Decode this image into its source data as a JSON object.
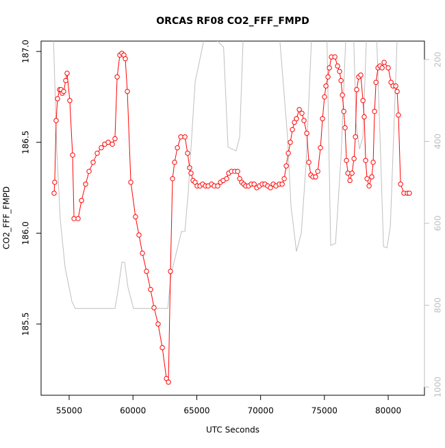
{
  "chart_data": {
    "type": "line",
    "title": "ORCAS RF08 CO2_FFF_FMPD",
    "xlabel": "UTC Seconds",
    "ylabel": "CO2_FFF_FMPD",
    "xlim": [
      52800,
      82840
    ],
    "xticks": [
      55000,
      60000,
      65000,
      70000,
      75000,
      80000
    ],
    "ylim": [
      185.108,
      187.057
    ],
    "yticks": [
      185.5,
      {
        "value": 186.0,
        "label": "186.0"
      },
      186.5,
      {
        "value": 187.0,
        "label": "187.0"
      }
    ],
    "y2lim": [
      1020,
      155
    ],
    "y2ticks": [
      200,
      400,
      600,
      800,
      1000
    ],
    "series": [
      {
        "color": "#ff0000",
        "marker": "circle",
        "x": [
          53820,
          53870,
          53980,
          54090,
          54250,
          54360,
          54460,
          54570,
          54730,
          54840,
          55050,
          55270,
          55380,
          55700,
          55970,
          56290,
          56560,
          56880,
          57200,
          57520,
          57790,
          58060,
          58380,
          58590,
          58760,
          58970,
          59130,
          59290,
          59400,
          59560,
          59830,
          60200,
          60470,
          60740,
          61060,
          61380,
          61650,
          61970,
          62300,
          62620,
          62780,
          62940,
          63100,
          63260,
          63480,
          63750,
          64070,
          64280,
          64440,
          64550,
          64710,
          64870,
          65030,
          65250,
          65460,
          65680,
          65890,
          66160,
          66370,
          66640,
          66860,
          67070,
          67340,
          67500,
          67720,
          67980,
          68200,
          68360,
          68520,
          68680,
          68840,
          69060,
          69270,
          69490,
          69700,
          69910,
          70130,
          70340,
          70560,
          70770,
          70990,
          71200,
          71470,
          71690,
          71850,
          72010,
          72170,
          72330,
          72490,
          72650,
          72810,
          73030,
          73240,
          73400,
          73620,
          73780,
          73940,
          74100,
          74310,
          74480,
          74690,
          74850,
          75010,
          75120,
          75280,
          75390,
          75550,
          75820,
          76030,
          76190,
          76300,
          76410,
          76520,
          76620,
          76730,
          76840,
          77000,
          77160,
          77320,
          77430,
          77530,
          77690,
          77850,
          78020,
          78120,
          78230,
          78340,
          78500,
          78710,
          78820,
          78930,
          79040,
          79200,
          79360,
          79520,
          79680,
          80000,
          80220,
          80380,
          80590,
          80700,
          80800,
          80970,
          81230,
          81500,
          81660
        ],
        "values": [
          186.22,
          186.28,
          186.62,
          186.74,
          186.79,
          186.79,
          186.77,
          186.78,
          186.84,
          186.88,
          186.73,
          186.43,
          186.08,
          186.08,
          186.18,
          186.27,
          186.34,
          186.39,
          186.44,
          186.47,
          186.49,
          186.5,
          186.49,
          186.52,
          186.86,
          186.98,
          186.99,
          186.98,
          186.96,
          186.78,
          186.28,
          186.09,
          185.99,
          185.89,
          185.79,
          185.69,
          185.59,
          185.5,
          185.37,
          185.2,
          185.18,
          185.79,
          186.3,
          186.39,
          186.47,
          186.53,
          186.53,
          186.44,
          186.36,
          186.33,
          186.29,
          186.28,
          186.26,
          186.26,
          186.27,
          186.26,
          186.26,
          186.27,
          186.26,
          186.26,
          186.28,
          186.29,
          186.3,
          186.33,
          186.34,
          186.34,
          186.34,
          186.3,
          186.28,
          186.27,
          186.26,
          186.26,
          186.27,
          186.27,
          186.25,
          186.26,
          186.27,
          186.27,
          186.26,
          186.25,
          186.27,
          186.26,
          186.27,
          186.27,
          186.3,
          186.37,
          186.44,
          186.5,
          186.57,
          186.61,
          186.63,
          186.68,
          186.66,
          186.62,
          186.55,
          186.39,
          186.32,
          186.31,
          186.31,
          186.34,
          186.47,
          186.63,
          186.75,
          186.81,
          186.86,
          186.91,
          186.97,
          186.97,
          186.92,
          186.89,
          186.84,
          186.76,
          186.67,
          186.58,
          186.4,
          186.33,
          186.29,
          186.33,
          186.41,
          186.53,
          186.79,
          186.86,
          186.87,
          186.73,
          186.64,
          186.4,
          186.3,
          186.26,
          186.31,
          186.39,
          186.67,
          186.83,
          186.91,
          186.92,
          186.91,
          186.94,
          186.91,
          186.83,
          186.81,
          186.81,
          186.78,
          186.65,
          186.27,
          186.22,
          186.22,
          186.22
        ]
      },
      {
        "color": "#bebebe",
        "axis": "y2",
        "x": [
          53770,
          54034,
          54300,
          54680,
          55215,
          55480,
          58595,
          58860,
          59130,
          59345,
          59610,
          60040,
          62725,
          62990,
          63800,
          64070,
          64335,
          64870,
          65570,
          66480,
          67100,
          67450,
          68090,
          68360,
          68630,
          71500,
          72110,
          72380,
          72810,
          73190,
          73560,
          73990,
          75200,
          75490,
          75870,
          76300,
          76670,
          77300,
          77480,
          77750,
          78020,
          78290,
          79100,
          79360,
          79630,
          79900,
          80170,
          80700
        ],
        "values": [
          150,
          423,
          590,
          707,
          791,
          808,
          808,
          757,
          695,
          695,
          757,
          808,
          808,
          724,
          620,
          620,
          523,
          255,
          150,
          150,
          170,
          414,
          423,
          389,
          150,
          150,
          389,
          557,
          669,
          624,
          456,
          150,
          150,
          654,
          649,
          440,
          150,
          150,
          356,
          419,
          389,
          150,
          150,
          389,
          657,
          660,
          607,
          150
        ]
      }
    ]
  }
}
